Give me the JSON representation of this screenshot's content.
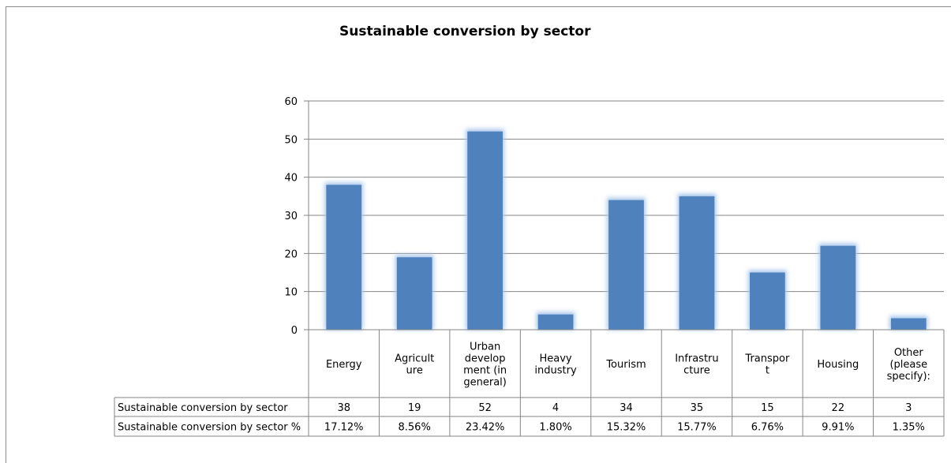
{
  "chart_data": {
    "type": "bar",
    "title": "Sustainable conversion by sector",
    "categories": [
      [
        "Energy"
      ],
      [
        "Agricult",
        "ure"
      ],
      [
        "Urban",
        "develop",
        "ment (in",
        "general)"
      ],
      [
        "Heavy",
        "industry"
      ],
      [
        "Tourism"
      ],
      [
        "Infrastru",
        "cture"
      ],
      [
        "Transpor",
        "t"
      ],
      [
        "Housing"
      ],
      [
        "Other",
        "(please",
        "specify):"
      ]
    ],
    "series": [
      {
        "name": "Sustainable conversion by sector",
        "values": [
          38,
          19,
          52,
          4,
          34,
          35,
          15,
          22,
          3
        ],
        "labels": [
          "38",
          "19",
          "52",
          "4",
          "34",
          "35",
          "15",
          "22",
          "3"
        ]
      }
    ],
    "table_rows": [
      {
        "label": "Sustainable conversion by sector",
        "cells": [
          "38",
          "19",
          "52",
          "4",
          "34",
          "35",
          "15",
          "22",
          "3"
        ]
      },
      {
        "label": "Sustainable conversion by sector %",
        "cells": [
          "17.12%",
          "8.56%",
          "23.42%",
          "1.80%",
          "15.32%",
          "15.77%",
          "6.76%",
          "9.91%",
          "1.35%"
        ]
      }
    ],
    "ylim": [
      0,
      60
    ],
    "yticks": [
      0,
      10,
      20,
      30,
      40,
      50,
      60
    ],
    "grid": true,
    "bar_color": "#4f81bd",
    "glow_color": "#a9c7ec"
  }
}
